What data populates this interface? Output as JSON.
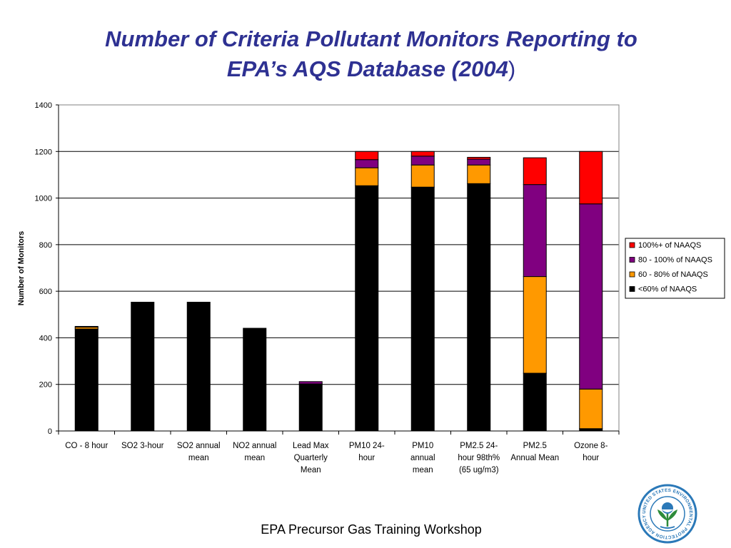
{
  "slide": {
    "title_line1": "Number of Criteria Pollutant Monitors Reporting to",
    "title_line2": "EPA’s AQS Database (2004",
    "title_close": ")",
    "footer": "EPA Precursor Gas Training Workshop",
    "seal_text": "UNITED STATES ENVIRONMENTAL PROTECTION AGENCY"
  },
  "chart_data": {
    "type": "bar",
    "stacked": true,
    "title": "",
    "xlabel": "",
    "ylabel": "Number of Monitors",
    "ylim": [
      0,
      1400
    ],
    "yticks": [
      0,
      200,
      400,
      600,
      800,
      1000,
      1200,
      1400
    ],
    "grid": "horizontal",
    "legend_position": "right",
    "categories": [
      [
        "CO - 8 hour"
      ],
      [
        "SO2 3-hour"
      ],
      [
        "SO2 annual",
        "mean"
      ],
      [
        "NO2 annual",
        "mean"
      ],
      [
        "Lead Max",
        "Quarterly",
        "Mean"
      ],
      [
        "PM10 24-",
        "hour"
      ],
      [
        "PM10",
        "annual",
        "mean"
      ],
      [
        "PM2.5 24-",
        "hour 98th%",
        "(65 ug/m3)"
      ],
      [
        "PM2.5",
        "Annual Mean"
      ],
      [
        "Ozone 8-",
        "hour"
      ]
    ],
    "series": [
      {
        "name": "<60% of NAAQS",
        "color": "#000000",
        "values": [
          438,
          553,
          553,
          441,
          200,
          1053,
          1047,
          1062,
          248,
          10
        ]
      },
      {
        "name": "60 - 80% of NAAQS",
        "color": "#ff9900",
        "values": [
          8,
          0,
          0,
          0,
          2,
          77,
          95,
          80,
          415,
          170
        ]
      },
      {
        "name": "80 - 100% of NAAQS",
        "color": "#800080",
        "values": [
          3,
          0,
          0,
          0,
          10,
          35,
          38,
          25,
          395,
          795
        ]
      },
      {
        "name": "100%+ of NAAQS",
        "color": "#ff0000",
        "values": [
          0,
          0,
          0,
          0,
          0,
          35,
          20,
          8,
          115,
          225
        ]
      }
    ],
    "legend_order": [
      3,
      2,
      1,
      0
    ]
  }
}
